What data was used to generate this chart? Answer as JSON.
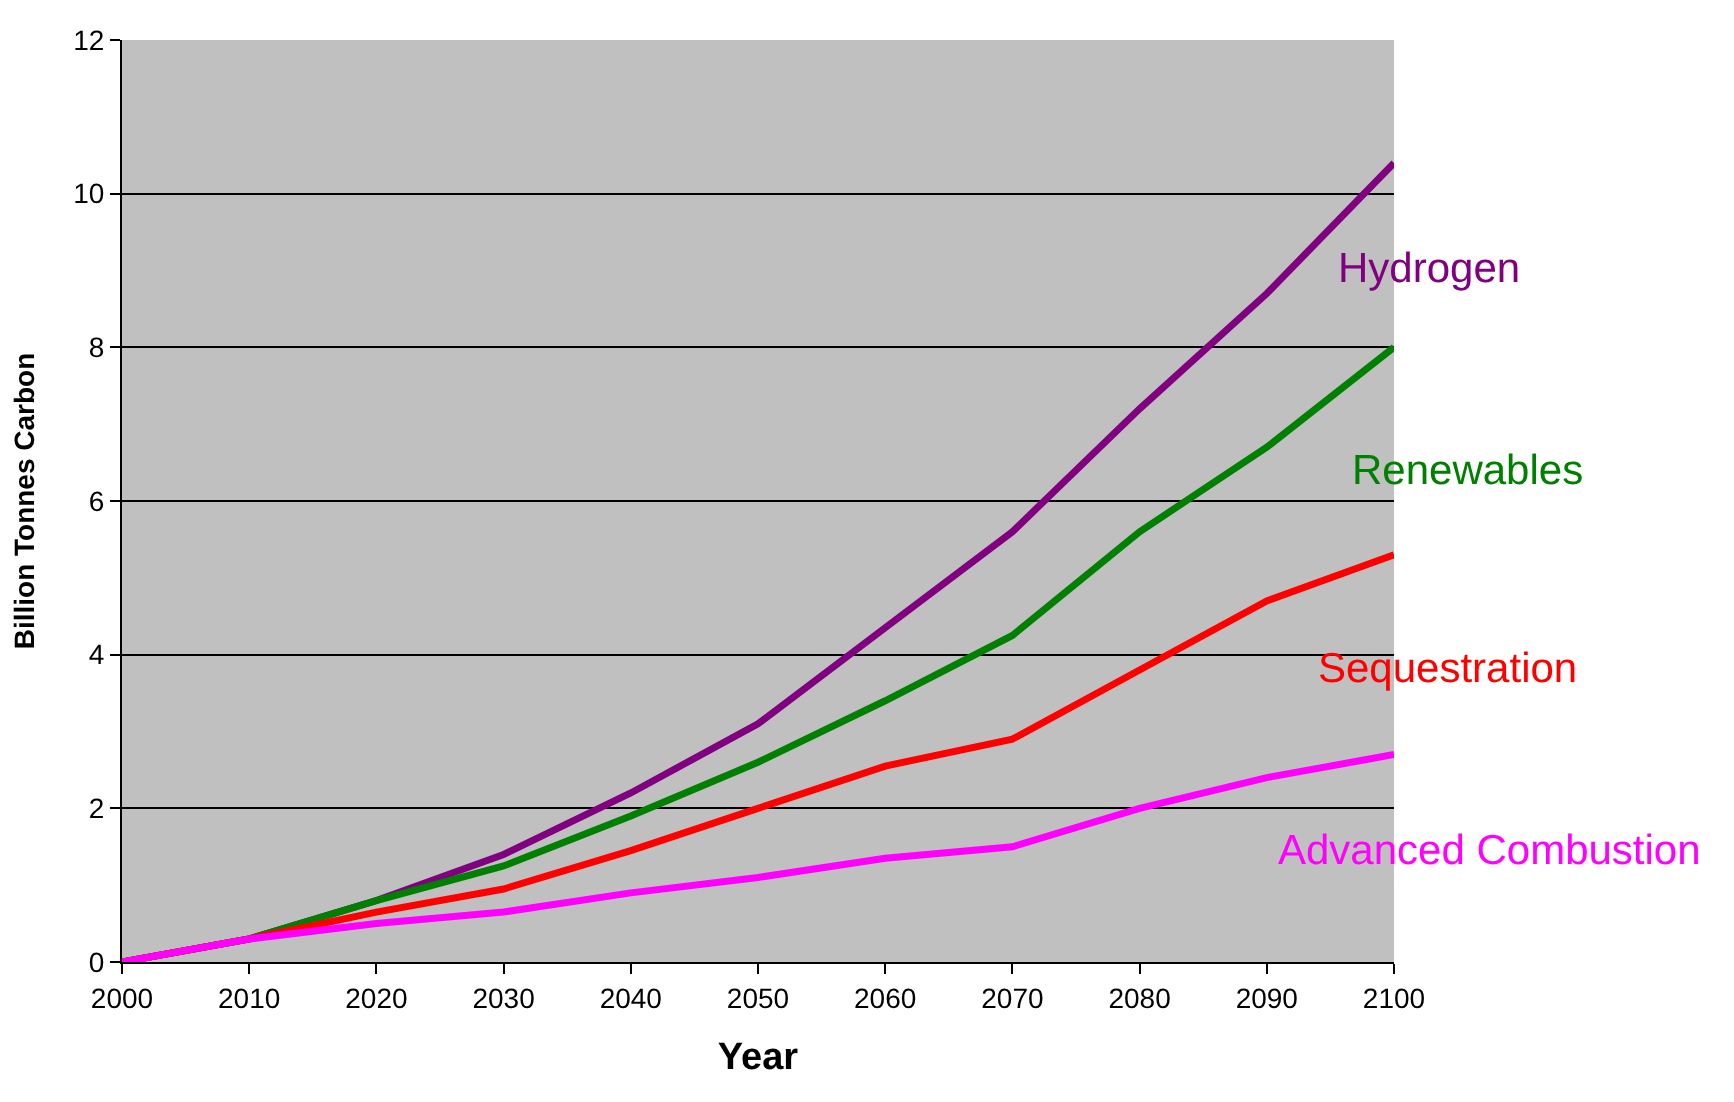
{
  "chart_data": {
    "type": "line",
    "xlabel": "Year",
    "ylabel": "Billion Tonnes Carbon",
    "x": [
      2000,
      2010,
      2020,
      2030,
      2040,
      2050,
      2060,
      2070,
      2080,
      2090,
      2100
    ],
    "series": [
      {
        "name": "Hydrogen",
        "color": "#800080",
        "values": [
          0,
          0.3,
          0.8,
          1.4,
          2.2,
          3.1,
          4.35,
          5.6,
          7.2,
          8.7,
          10.4
        ]
      },
      {
        "name": "Renewables",
        "color": "#008000",
        "values": [
          0,
          0.3,
          0.8,
          1.25,
          1.9,
          2.6,
          3.4,
          4.25,
          5.6,
          6.7,
          8.0
        ]
      },
      {
        "name": "Sequestration",
        "color": "#ff0000",
        "values": [
          0,
          0.3,
          0.65,
          0.95,
          1.45,
          2.0,
          2.55,
          2.9,
          3.8,
          4.7,
          5.3
        ]
      },
      {
        "name": "Advanced Combustion",
        "color": "#ff00ff",
        "values": [
          0,
          0.3,
          0.5,
          0.65,
          0.9,
          1.1,
          1.35,
          1.5,
          2.0,
          2.4,
          2.7
        ]
      }
    ],
    "xlim": [
      2000,
      2100
    ],
    "xticks": [
      2000,
      2010,
      2020,
      2030,
      2040,
      2050,
      2060,
      2070,
      2080,
      2090,
      2100
    ],
    "ylim": [
      0,
      12
    ],
    "yticks": [
      0,
      2,
      4,
      6,
      8,
      10,
      12
    ],
    "grid": "y",
    "legend": false,
    "marker": "none",
    "line_style": "solid"
  }
}
